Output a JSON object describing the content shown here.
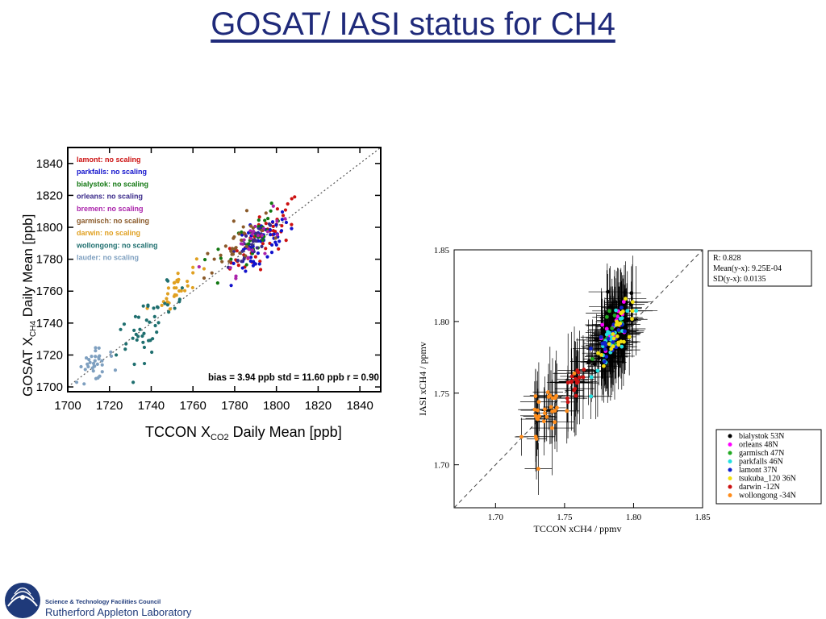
{
  "slide": {
    "title": "GOSAT/ IASI status for CH4"
  },
  "logo": {
    "line1": "Science & Technology Facilities Council",
    "line2": "Rutherford Appleton Laboratory",
    "color": "#1f3a7a"
  },
  "chart_data": [
    {
      "type": "scatter",
      "title": "",
      "xlabel": "TCCON X",
      "xlabel_sub": "CO2",
      "xlabel_tail": " Daily Mean [ppb]",
      "ylabel": "GOSAT X",
      "ylabel_sub": "CH4",
      "ylabel_tail": " Daily Mean [ppb]",
      "xlim": [
        1700,
        1850
      ],
      "ylim": [
        1697,
        1850
      ],
      "xticks": [
        "1700",
        "1720",
        "1740",
        "1760",
        "1780",
        "1800",
        "1820",
        "1840"
      ],
      "yticks": [
        "1700",
        "1720",
        "1740",
        "1760",
        "1780",
        "1800",
        "1820",
        "1840"
      ],
      "reference_line": "1:1 dotted",
      "legend_placement": "top-left",
      "stats_text": "bias =   3.94 ppb  std =  11.60 ppb  r = 0.90",
      "series": [
        {
          "name": "lamont: no scaling",
          "color": "#cc1111",
          "center": [
            1795,
            1795
          ],
          "spread": [
            14,
            12
          ],
          "count": 55
        },
        {
          "name": "parkfalls: no scaling",
          "color": "#1111cc",
          "center": [
            1792,
            1788
          ],
          "spread": [
            12,
            12
          ],
          "count": 55
        },
        {
          "name": "bialystok: no scaling",
          "color": "#117711",
          "center": [
            1785,
            1790
          ],
          "spread": [
            14,
            14
          ],
          "count": 30
        },
        {
          "name": "orleans: no scaling",
          "color": "#3a2a8a",
          "center": [
            1790,
            1793
          ],
          "spread": [
            10,
            10
          ],
          "count": 25
        },
        {
          "name": "bremen: no scaling",
          "color": "#aa22aa",
          "center": [
            1788,
            1792
          ],
          "spread": [
            12,
            12
          ],
          "count": 25
        },
        {
          "name": "garmisch: no scaling",
          "color": "#8a5a2a",
          "center": [
            1780,
            1788
          ],
          "spread": [
            12,
            12
          ],
          "count": 30
        },
        {
          "name": "darwin: no scaling",
          "color": "#e0a020",
          "center": [
            1752,
            1762
          ],
          "spread": [
            8,
            8
          ],
          "count": 30
        },
        {
          "name": "wollongong: no scaling",
          "color": "#1f6f6f",
          "center": [
            1740,
            1740
          ],
          "spread": [
            14,
            14
          ],
          "count": 45
        },
        {
          "name": "lauder: no scaling",
          "color": "#7fa0c0",
          "center": [
            1712,
            1712
          ],
          "spread": [
            8,
            8
          ],
          "count": 35
        }
      ]
    },
    {
      "type": "scatter",
      "title": "",
      "xlabel": "TCCON xCH4 / ppmv",
      "ylabel": "IASI xCH4 / ppmv",
      "xlim": [
        1.67,
        1.85
      ],
      "ylim": [
        1.67,
        1.85
      ],
      "xticks": [
        "1.70",
        "1.75",
        "1.80",
        "1.85"
      ],
      "yticks": [
        "1.70",
        "1.75",
        "1.80",
        "1.85"
      ],
      "reference_line": "1:1 dashed",
      "error_bars": true,
      "stats": [
        "R: 0.828",
        "Mean(y-x): 9.25E-04",
        "SD(y-x): 0.0135"
      ],
      "legend_placement": "bottom-right",
      "series": [
        {
          "name": "bialystok 53N",
          "color": "#000000",
          "center": [
            1.785,
            1.79
          ],
          "spread": [
            0.012,
            0.015
          ],
          "count": 70
        },
        {
          "name": "orleans 48N",
          "color": "#ff00ff",
          "center": [
            1.785,
            1.795
          ],
          "spread": [
            0.008,
            0.01
          ],
          "count": 15
        },
        {
          "name": "garmisch 47N",
          "color": "#22aa22",
          "center": [
            1.785,
            1.795
          ],
          "spread": [
            0.008,
            0.01
          ],
          "count": 12
        },
        {
          "name": "parkfalls 46N",
          "color": "#22e0e0",
          "center": [
            1.785,
            1.785
          ],
          "spread": [
            0.01,
            0.012
          ],
          "count": 30
        },
        {
          "name": "lamont 37N",
          "color": "#1122cc",
          "center": [
            1.785,
            1.79
          ],
          "spread": [
            0.008,
            0.01
          ],
          "count": 20
        },
        {
          "name": "tsukuba_120 36N",
          "color": "#f0e010",
          "center": [
            1.79,
            1.795
          ],
          "spread": [
            0.01,
            0.01
          ],
          "count": 25
        },
        {
          "name": "darwin -12N",
          "color": "#cc1111",
          "center": [
            1.758,
            1.758
          ],
          "spread": [
            0.006,
            0.006
          ],
          "count": 18
        },
        {
          "name": "wollongong -34N",
          "color": "#ff8c1a",
          "center": [
            1.735,
            1.735
          ],
          "spread": [
            0.01,
            0.012
          ],
          "count": 30
        }
      ]
    }
  ]
}
